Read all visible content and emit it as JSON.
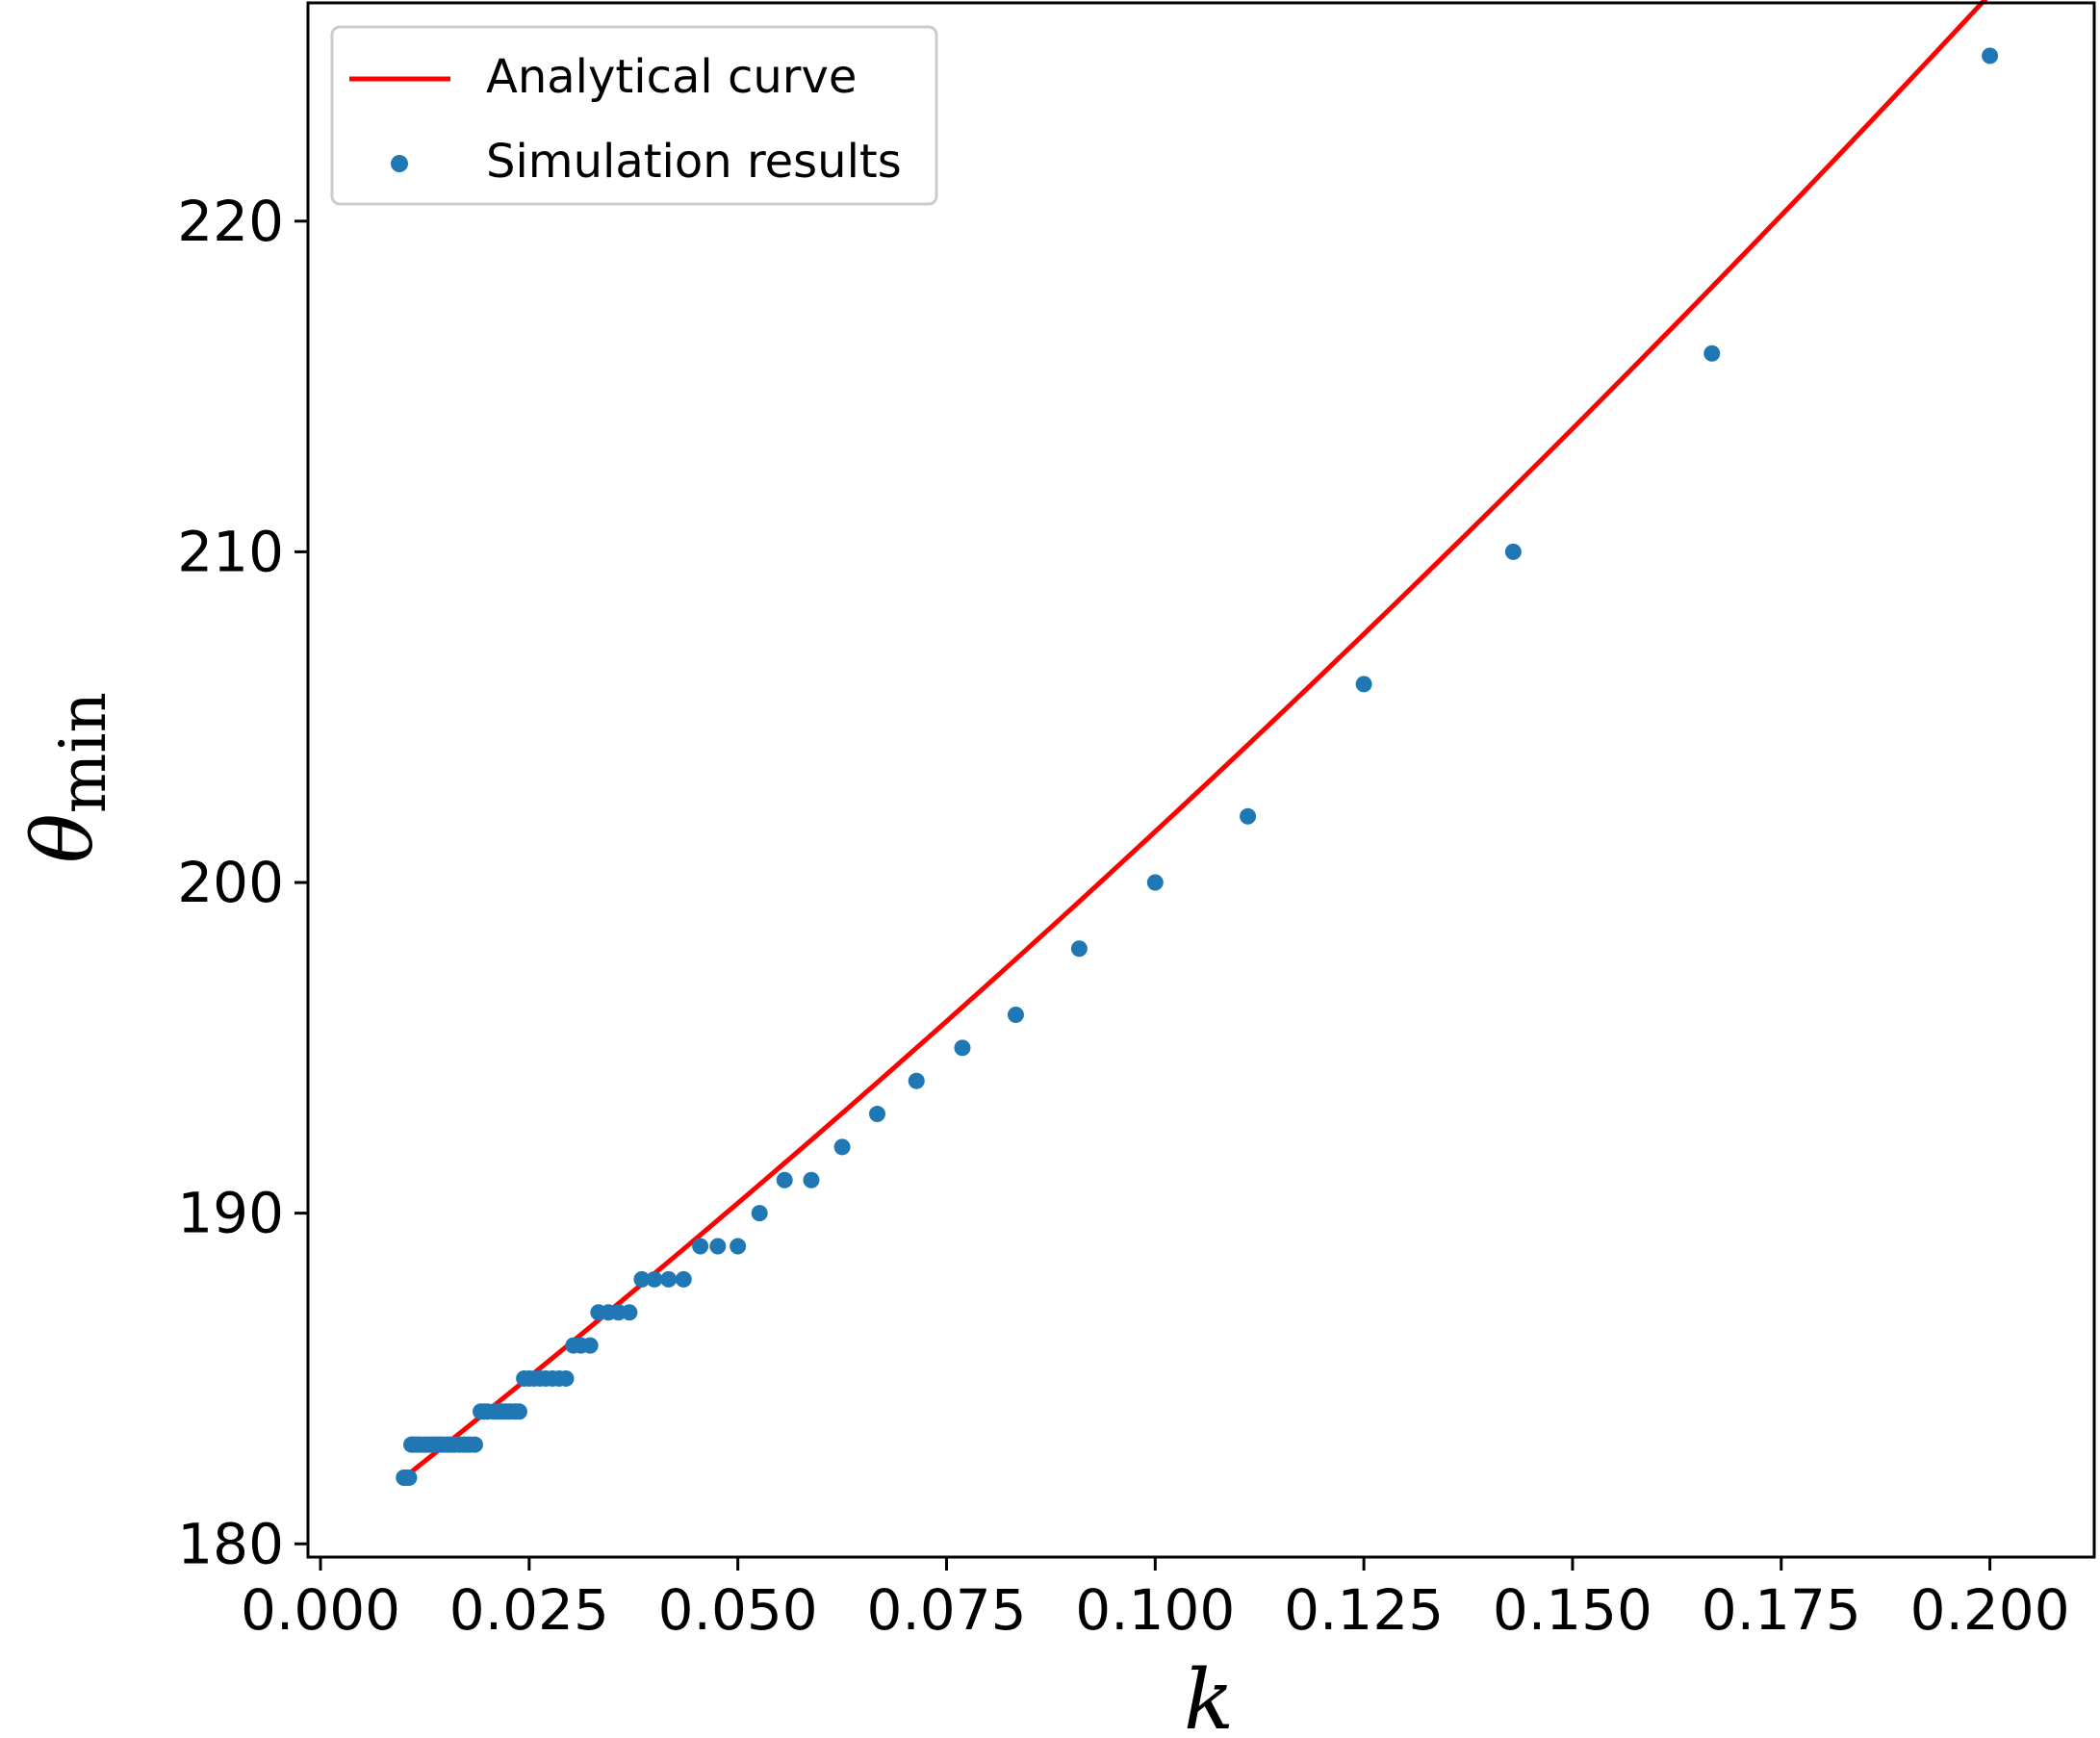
{
  "chart_data": {
    "type": "scatter",
    "xlabel": "k",
    "ylabel_main": "θ",
    "ylabel_sub": "min",
    "xlim": [
      -0.0015,
      0.2125
    ],
    "ylim": [
      179.6,
      226.6
    ],
    "grid": false,
    "legend_position": "top-left",
    "x_ticks": [
      0.0,
      0.025,
      0.05,
      0.075,
      0.1,
      0.125,
      0.15,
      0.175,
      0.2
    ],
    "x_tick_labels": [
      "0.000",
      "0.025",
      "0.050",
      "0.075",
      "0.100",
      "0.125",
      "0.150",
      "0.175",
      "0.200"
    ],
    "y_ticks": [
      180,
      190,
      200,
      210,
      220
    ],
    "y_tick_labels": [
      "180",
      "190",
      "200",
      "210",
      "220"
    ],
    "series": [
      {
        "name": "Analytical curve",
        "kind": "line",
        "color": "#ff0000",
        "x": [
          0.01,
          0.015,
          0.02,
          0.025,
          0.03,
          0.035,
          0.04,
          0.045,
          0.05,
          0.055,
          0.06,
          0.065,
          0.07,
          0.075,
          0.08,
          0.085,
          0.09,
          0.095,
          0.1,
          0.105,
          0.11,
          0.115,
          0.12,
          0.125,
          0.13,
          0.135,
          0.14,
          0.145,
          0.15,
          0.155,
          0.16,
          0.165,
          0.17,
          0.175,
          0.18,
          0.185,
          0.19,
          0.195,
          0.2
        ],
        "y": [
          182.0,
          183.0,
          184.1,
          185.1,
          186.1,
          187.1,
          188.1,
          189.1,
          190.1,
          191.1,
          192.1,
          193.2,
          194.2,
          195.3,
          196.4,
          197.5,
          198.6,
          199.8,
          200.9,
          202.2,
          203.4,
          204.7,
          206.0,
          207.3,
          208.7,
          210.1,
          211.5,
          213.0,
          214.5,
          216.0,
          217.6,
          219.2,
          220.8,
          222.5,
          224.2,
          225.9,
          227.7,
          229.5,
          225.0
        ]
      },
      {
        "name": "Simulation results",
        "kind": "scatter",
        "color": "#1f77b4",
        "x": [
          0.01,
          0.0103,
          0.0106,
          0.0109,
          0.0112,
          0.0116,
          0.012,
          0.0125,
          0.013,
          0.0135,
          0.0139,
          0.0143,
          0.0147,
          0.0152,
          0.0156,
          0.0161,
          0.0167,
          0.0172,
          0.0175,
          0.0179,
          0.0185,
          0.0192,
          0.0196,
          0.02,
          0.0208,
          0.0213,
          0.0217,
          0.0222,
          0.0227,
          0.0233,
          0.0238,
          0.0244,
          0.025,
          0.0256,
          0.0263,
          0.027,
          0.0278,
          0.0286,
          0.0294,
          0.0303,
          0.0312,
          0.0323,
          0.0333,
          0.0345,
          0.0357,
          0.037,
          0.0385,
          0.04,
          0.0417,
          0.0435,
          0.0455,
          0.0476,
          0.05,
          0.0526,
          0.0556,
          0.0588,
          0.0625,
          0.0667,
          0.0714,
          0.0769,
          0.0833,
          0.0909,
          0.1,
          0.1111,
          0.125,
          0.1429,
          0.1667,
          0.2
        ],
        "y": [
          182,
          182,
          182,
          183,
          183,
          183,
          183,
          183,
          183,
          183,
          183,
          183,
          183,
          183,
          183,
          183,
          183,
          183,
          183,
          183,
          183,
          184,
          184,
          184,
          184,
          184,
          184,
          184,
          184,
          184,
          184,
          185,
          185,
          185,
          185,
          185,
          185,
          185,
          185,
          186,
          186,
          186,
          187,
          187,
          187,
          187,
          188,
          188,
          188,
          188,
          189,
          189,
          189,
          190,
          191,
          191,
          192,
          193,
          194,
          195,
          196,
          198,
          200,
          202,
          206,
          210,
          216,
          225
        ]
      }
    ]
  }
}
